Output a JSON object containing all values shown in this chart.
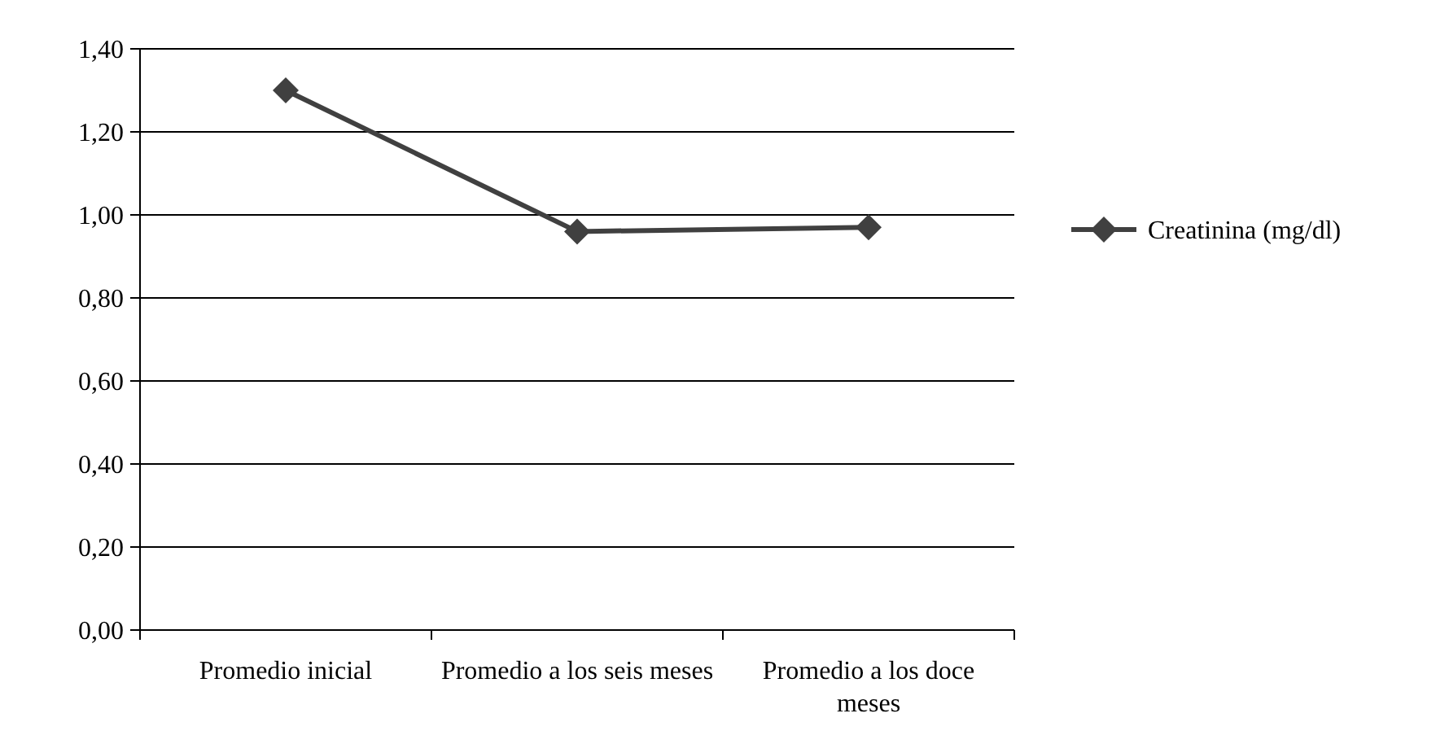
{
  "chart_data": {
    "type": "line",
    "categories": [
      "Promedio inicial",
      "Promedio a los seis meses",
      "Promedio a los doce meses"
    ],
    "series": [
      {
        "name": "Creatinina (mg/dl)",
        "color": "#404040",
        "values": [
          1.3,
          0.96,
          0.97
        ]
      }
    ],
    "ylim": [
      0,
      1.4
    ],
    "yticks": [
      {
        "value": 0,
        "label": "0,00"
      },
      {
        "value": 0.2,
        "label": "0,20"
      },
      {
        "value": 0.4,
        "label": "0,40"
      },
      {
        "value": 0.6,
        "label": "0,60"
      },
      {
        "value": 0.8,
        "label": "0,80"
      },
      {
        "value": 1.0,
        "label": "1,00"
      },
      {
        "value": 1.2,
        "label": "1,20"
      },
      {
        "value": 1.4,
        "label": "1,40"
      }
    ],
    "grid": "y",
    "legend": "right",
    "marker": "diamond",
    "line_style": "solid"
  }
}
